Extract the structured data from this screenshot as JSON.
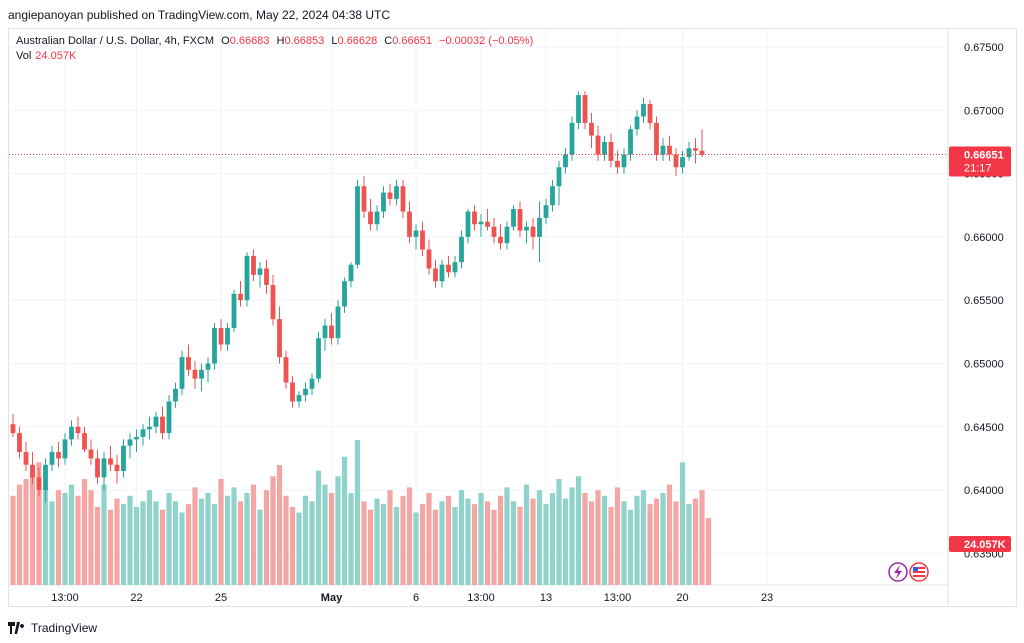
{
  "header": {
    "published": "angiepanoyan published on TradingView.com, May 22, 2024 04:38 UTC"
  },
  "legend": {
    "symbol": "Australian Dollar / U.S. Dollar, 4h, FXCM",
    "open_label": "O",
    "open": "0.66683",
    "high_label": "H",
    "high": "0.66853",
    "low_label": "L",
    "low": "0.66628",
    "close_label": "C",
    "close": "0.66651",
    "change": "−0.00032 (−0.05%)",
    "vol_label": "Vol",
    "vol": "24.057K"
  },
  "price_tag": {
    "price": "0.66651",
    "countdown": "21:17"
  },
  "vol_tag": "24.057K",
  "footer": {
    "brand": "TradingView"
  },
  "colors": {
    "up": "#26a69a",
    "down": "#ef5350",
    "vol_up": "#8fd3ca",
    "vol_down": "#f4a6a4",
    "grid": "#f0f3fa",
    "axis_text": "#131722"
  },
  "chart_data": {
    "type": "candlestick",
    "ylim": [
      0.6325,
      0.6765
    ],
    "y_ticks": [
      "0.67500",
      "0.67000",
      "0.66500",
      "0.66000",
      "0.65500",
      "0.65000",
      "0.64500",
      "0.64000",
      "0.63500"
    ],
    "x_ticks": [
      {
        "label": "13:00",
        "i": 8
      },
      {
        "label": "22",
        "i": 19
      },
      {
        "label": "25",
        "i": 32
      },
      {
        "label": "May",
        "i": 49
      },
      {
        "label": "6",
        "i": 62
      },
      {
        "label": "13:00",
        "i": 72
      },
      {
        "label": "13",
        "i": 82
      },
      {
        "label": "13:00",
        "i": 93
      },
      {
        "label": "20",
        "i": 103
      },
      {
        "label": "23",
        "i": 116
      }
    ],
    "candles": [
      [
        0.6452,
        0.646,
        0.6442,
        0.6445
      ],
      [
        0.6445,
        0.645,
        0.6425,
        0.643
      ],
      [
        0.643,
        0.6438,
        0.6415,
        0.642
      ],
      [
        0.642,
        0.643,
        0.6405,
        0.641
      ],
      [
        0.641,
        0.6418,
        0.6395,
        0.64
      ],
      [
        0.64,
        0.6425,
        0.639,
        0.642
      ],
      [
        0.642,
        0.6435,
        0.6415,
        0.643
      ],
      [
        0.643,
        0.6438,
        0.6418,
        0.6425
      ],
      [
        0.6425,
        0.6445,
        0.642,
        0.644
      ],
      [
        0.644,
        0.6455,
        0.6435,
        0.645
      ],
      [
        0.645,
        0.6458,
        0.644,
        0.6445
      ],
      [
        0.6445,
        0.645,
        0.643,
        0.6432
      ],
      [
        0.6432,
        0.644,
        0.642,
        0.6425
      ],
      [
        0.6425,
        0.6432,
        0.6405,
        0.641
      ],
      [
        0.641,
        0.643,
        0.64,
        0.6425
      ],
      [
        0.6425,
        0.6435,
        0.6415,
        0.642
      ],
      [
        0.642,
        0.6428,
        0.6405,
        0.6415
      ],
      [
        0.6415,
        0.644,
        0.641,
        0.6435
      ],
      [
        0.6435,
        0.6445,
        0.6425,
        0.644
      ],
      [
        0.644,
        0.6448,
        0.643,
        0.6442
      ],
      [
        0.6442,
        0.6452,
        0.6435,
        0.6448
      ],
      [
        0.6448,
        0.6458,
        0.644,
        0.645
      ],
      [
        0.645,
        0.6462,
        0.6445,
        0.6458
      ],
      [
        0.6458,
        0.6466,
        0.644,
        0.6445
      ],
      [
        0.6445,
        0.6475,
        0.644,
        0.647
      ],
      [
        0.647,
        0.6485,
        0.6465,
        0.648
      ],
      [
        0.648,
        0.651,
        0.6475,
        0.6505
      ],
      [
        0.6505,
        0.6515,
        0.649,
        0.6495
      ],
      [
        0.6495,
        0.6502,
        0.648,
        0.6488
      ],
      [
        0.6488,
        0.65,
        0.6478,
        0.6495
      ],
      [
        0.6495,
        0.6505,
        0.6485,
        0.65
      ],
      [
        0.65,
        0.6532,
        0.6495,
        0.6528
      ],
      [
        0.6528,
        0.6535,
        0.651,
        0.6515
      ],
      [
        0.6515,
        0.6532,
        0.651,
        0.6528
      ],
      [
        0.6528,
        0.6558,
        0.6525,
        0.6555
      ],
      [
        0.6555,
        0.6565,
        0.6545,
        0.655
      ],
      [
        0.655,
        0.6588,
        0.6545,
        0.6585
      ],
      [
        0.6585,
        0.659,
        0.6565,
        0.657
      ],
      [
        0.657,
        0.658,
        0.656,
        0.6575
      ],
      [
        0.6575,
        0.6582,
        0.6555,
        0.6562
      ],
      [
        0.6562,
        0.657,
        0.653,
        0.6535
      ],
      [
        0.6535,
        0.6545,
        0.65,
        0.6505
      ],
      [
        0.6505,
        0.651,
        0.648,
        0.6485
      ],
      [
        0.6485,
        0.649,
        0.6465,
        0.647
      ],
      [
        0.647,
        0.6478,
        0.6465,
        0.6475
      ],
      [
        0.6475,
        0.6485,
        0.647,
        0.648
      ],
      [
        0.648,
        0.6492,
        0.6475,
        0.6488
      ],
      [
        0.6488,
        0.6525,
        0.6485,
        0.652
      ],
      [
        0.652,
        0.6535,
        0.651,
        0.653
      ],
      [
        0.653,
        0.654,
        0.6515,
        0.652
      ],
      [
        0.652,
        0.655,
        0.6515,
        0.6545
      ],
      [
        0.6545,
        0.6568,
        0.654,
        0.6565
      ],
      [
        0.6565,
        0.658,
        0.656,
        0.6578
      ],
      [
        0.6578,
        0.6645,
        0.6575,
        0.664
      ],
      [
        0.664,
        0.6648,
        0.6615,
        0.662
      ],
      [
        0.662,
        0.663,
        0.6605,
        0.661
      ],
      [
        0.661,
        0.6625,
        0.6605,
        0.662
      ],
      [
        0.662,
        0.664,
        0.6615,
        0.6635
      ],
      [
        0.6635,
        0.6642,
        0.6625,
        0.663
      ],
      [
        0.663,
        0.6645,
        0.6625,
        0.664
      ],
      [
        0.664,
        0.6645,
        0.6615,
        0.662
      ],
      [
        0.662,
        0.6628,
        0.6595,
        0.66
      ],
      [
        0.66,
        0.661,
        0.659,
        0.6605
      ],
      [
        0.6605,
        0.6612,
        0.6585,
        0.659
      ],
      [
        0.659,
        0.6598,
        0.657,
        0.6575
      ],
      [
        0.6575,
        0.6582,
        0.656,
        0.6565
      ],
      [
        0.6565,
        0.6582,
        0.656,
        0.6578
      ],
      [
        0.6578,
        0.6585,
        0.6568,
        0.6572
      ],
      [
        0.6572,
        0.6585,
        0.6568,
        0.658
      ],
      [
        0.658,
        0.6605,
        0.6575,
        0.66
      ],
      [
        0.66,
        0.6622,
        0.6595,
        0.662
      ],
      [
        0.662,
        0.6625,
        0.6605,
        0.661
      ],
      [
        0.661,
        0.6618,
        0.66,
        0.6612
      ],
      [
        0.6612,
        0.6622,
        0.6605,
        0.6608
      ],
      [
        0.6608,
        0.6615,
        0.6595,
        0.66
      ],
      [
        0.66,
        0.661,
        0.659,
        0.6595
      ],
      [
        0.6595,
        0.6612,
        0.659,
        0.6608
      ],
      [
        0.6608,
        0.6625,
        0.6605,
        0.6622
      ],
      [
        0.6622,
        0.6628,
        0.66,
        0.6605
      ],
      [
        0.6605,
        0.6612,
        0.6595,
        0.6608
      ],
      [
        0.6608,
        0.6615,
        0.659,
        0.66
      ],
      [
        0.66,
        0.6628,
        0.658,
        0.6615
      ],
      [
        0.6615,
        0.663,
        0.661,
        0.6625
      ],
      [
        0.6625,
        0.6645,
        0.662,
        0.664
      ],
      [
        0.664,
        0.666,
        0.6625,
        0.6655
      ],
      [
        0.6655,
        0.667,
        0.665,
        0.6665
      ],
      [
        0.6665,
        0.6695,
        0.666,
        0.669
      ],
      [
        0.669,
        0.6715,
        0.6685,
        0.6712
      ],
      [
        0.6712,
        0.6715,
        0.6685,
        0.669
      ],
      [
        0.669,
        0.6698,
        0.667,
        0.668
      ],
      [
        0.668,
        0.6688,
        0.666,
        0.6665
      ],
      [
        0.6665,
        0.668,
        0.666,
        0.6675
      ],
      [
        0.6675,
        0.6682,
        0.6655,
        0.666
      ],
      [
        0.666,
        0.6668,
        0.665,
        0.6655
      ],
      [
        0.6655,
        0.667,
        0.665,
        0.6665
      ],
      [
        0.6665,
        0.6688,
        0.666,
        0.6685
      ],
      [
        0.6685,
        0.67,
        0.668,
        0.6695
      ],
      [
        0.6695,
        0.671,
        0.669,
        0.6705
      ],
      [
        0.6705,
        0.6708,
        0.6685,
        0.669
      ],
      [
        0.669,
        0.6695,
        0.666,
        0.6665
      ],
      [
        0.6665,
        0.6678,
        0.666,
        0.6672
      ],
      [
        0.6672,
        0.668,
        0.666,
        0.6665
      ],
      [
        0.6665,
        0.667,
        0.6648,
        0.6655
      ],
      [
        0.6655,
        0.6668,
        0.665,
        0.6663
      ],
      [
        0.6663,
        0.6675,
        0.666,
        0.667
      ],
      [
        0.667,
        0.6678,
        0.6658,
        0.6668
      ],
      [
        0.6668,
        0.6685,
        0.6663,
        0.6665
      ]
    ],
    "volumes": [
      3.2,
      3.6,
      3.8,
      4.1,
      4.4,
      3.5,
      3.0,
      3.4,
      3.3,
      3.6,
      3.2,
      3.8,
      3.4,
      2.8,
      3.6,
      2.7,
      3.1,
      2.9,
      3.2,
      2.8,
      3.0,
      3.4,
      3.0,
      2.7,
      3.3,
      3.0,
      2.6,
      2.9,
      3.5,
      3.1,
      3.3,
      2.9,
      3.8,
      3.2,
      3.5,
      3.0,
      3.3,
      3.6,
      2.7,
      3.4,
      3.9,
      4.3,
      3.2,
      2.8,
      2.6,
      3.2,
      3.0,
      4.1,
      3.6,
      3.3,
      3.9,
      4.6,
      3.3,
      5.2,
      3.0,
      2.7,
      3.1,
      2.9,
      3.4,
      2.8,
      3.2,
      3.5,
      2.6,
      2.9,
      3.3,
      2.7,
      3.0,
      3.2,
      2.8,
      3.4,
      3.1,
      2.9,
      3.3,
      3.0,
      2.7,
      3.2,
      3.5,
      3.0,
      2.8,
      3.6,
      3.1,
      3.4,
      2.9,
      3.3,
      3.8,
      3.1,
      3.5,
      3.9,
      3.3,
      3.0,
      3.4,
      3.2,
      2.8,
      3.5,
      3.0,
      2.7,
      3.2,
      3.4,
      2.9,
      3.1,
      3.3,
      3.6,
      3.0,
      4.4,
      2.9,
      3.1,
      3.4,
      2.4
    ]
  }
}
